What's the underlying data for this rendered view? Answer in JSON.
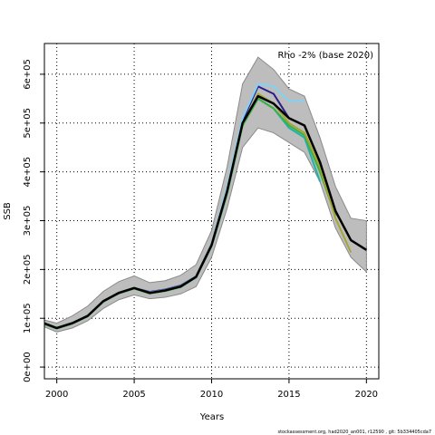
{
  "chart_data": {
    "type": "line",
    "annotation": "Rho -2% (base 2020)",
    "y_label": "SSB",
    "x_label": "Years",
    "footer": "stockassessment.org, had2020_an001, r12590 , git: 5b334405cda7",
    "x": [
      1999,
      2000,
      2001,
      2002,
      2003,
      2004,
      2005,
      2006,
      2007,
      2008,
      2009,
      2010,
      2011,
      2012,
      2013,
      2014,
      2015,
      2016,
      2017,
      2018,
      2019,
      2020
    ],
    "xlim": [
      1999.2,
      2020.8
    ],
    "xticks": [
      2000,
      2005,
      2010,
      2015,
      2020
    ],
    "ylim": [
      -24000,
      663000
    ],
    "yticks": [
      {
        "value": 0,
        "label": "0e+00"
      },
      {
        "value": 100000,
        "label": "1e+05"
      },
      {
        "value": 200000,
        "label": "2e+05"
      },
      {
        "value": 300000,
        "label": "3e+05"
      },
      {
        "value": 400000,
        "label": "4e+05"
      },
      {
        "value": 500000,
        "label": "5e+05"
      },
      {
        "value": 600000,
        "label": "6e+05"
      }
    ],
    "grid": true,
    "band": {
      "color": "#bdbdbd",
      "lower": [
        85000,
        72000,
        80000,
        95000,
        120000,
        138000,
        148000,
        140000,
        143000,
        150000,
        165000,
        225000,
        325000,
        450000,
        490000,
        480000,
        460000,
        440000,
        380000,
        285000,
        225000,
        195000
      ],
      "upper": [
        98000,
        90000,
        105000,
        125000,
        155000,
        175000,
        187000,
        173000,
        177000,
        188000,
        210000,
        280000,
        410000,
        580000,
        635000,
        610000,
        570000,
        555000,
        470000,
        370000,
        305000,
        300000
      ]
    },
    "series": [
      {
        "color": "#000000",
        "values": [
          92000,
          80000,
          90000,
          105000,
          135000,
          152000,
          162000,
          152000,
          157000,
          165000,
          185000,
          250000,
          360000,
          500000,
          555000,
          540000,
          510000,
          495000,
          420000,
          320000,
          260000,
          240000
        ]
      },
      {
        "color": "#2a1e8c",
        "values": [
          92000,
          80000,
          90000,
          105000,
          135000,
          152000,
          162000,
          154000,
          159000,
          167000,
          186000,
          252000,
          365000,
          505000,
          575000,
          560000,
          510000,
          null,
          null,
          null,
          null,
          null
        ]
      },
      {
        "color": "#7fd3f5",
        "values": [
          92000,
          80000,
          90000,
          105000,
          135000,
          152000,
          162000,
          153000,
          158000,
          166000,
          186000,
          252000,
          368000,
          510000,
          580000,
          575000,
          545000,
          545000,
          null,
          null,
          null,
          null
        ]
      },
      {
        "color": "#20b2aa",
        "values": [
          90000,
          79000,
          89000,
          104000,
          134000,
          151000,
          161000,
          151000,
          156000,
          164000,
          184000,
          248000,
          355000,
          495000,
          550000,
          530000,
          490000,
          470000,
          380000,
          null,
          null,
          null
        ]
      },
      {
        "color": "#3cb043",
        "values": [
          90000,
          79000,
          89000,
          104000,
          134000,
          151000,
          161000,
          151000,
          156000,
          164000,
          184000,
          248000,
          355000,
          495000,
          550000,
          530000,
          495000,
          475000,
          400000,
          310000,
          null,
          null
        ]
      },
      {
        "color": "#a4a832",
        "values": [
          91000,
          80000,
          90000,
          105000,
          135000,
          152000,
          162000,
          152000,
          157000,
          165000,
          185000,
          250000,
          358000,
          498000,
          560000,
          540000,
          500000,
          480000,
          410000,
          305000,
          235000,
          null
        ]
      }
    ]
  }
}
